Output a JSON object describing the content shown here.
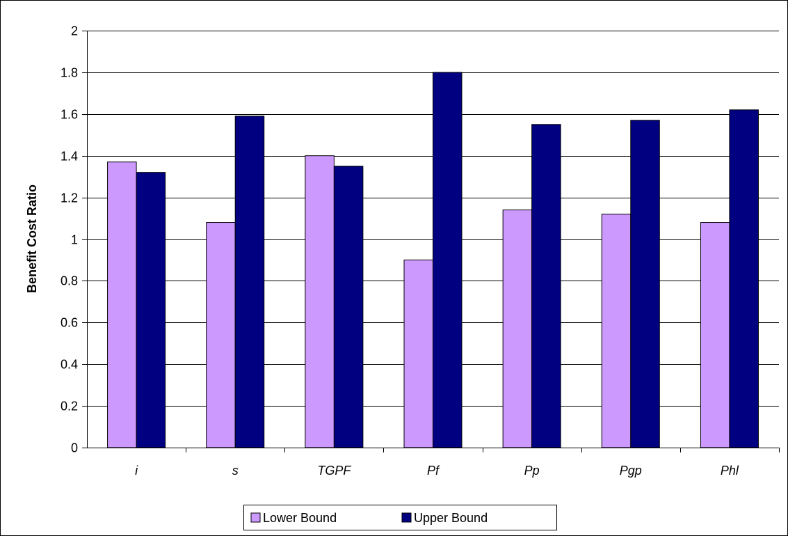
{
  "chart_data": {
    "type": "bar",
    "title": "",
    "xlabel": "",
    "ylabel": "Benefit Cost Ratio",
    "categories": [
      "i",
      "s",
      "TGPF",
      "Pf",
      "Pp",
      "Pgp",
      "Phl"
    ],
    "series": [
      {
        "name": "Lower Bound",
        "color": "#cc99ff",
        "values": [
          1.37,
          1.08,
          1.4,
          0.9,
          1.14,
          1.12,
          1.08
        ]
      },
      {
        "name": "Upper Bound",
        "color": "#000080",
        "values": [
          1.32,
          1.59,
          1.35,
          1.8,
          1.55,
          1.57,
          1.62
        ]
      }
    ],
    "ylim": [
      0,
      2
    ],
    "yticks": [
      "0",
      "0.2",
      "0.4",
      "0.6",
      "0.8",
      "1",
      "1.2",
      "1.4",
      "1.6",
      "1.8",
      "2"
    ],
    "grid": true,
    "legend_position": "bottom"
  }
}
